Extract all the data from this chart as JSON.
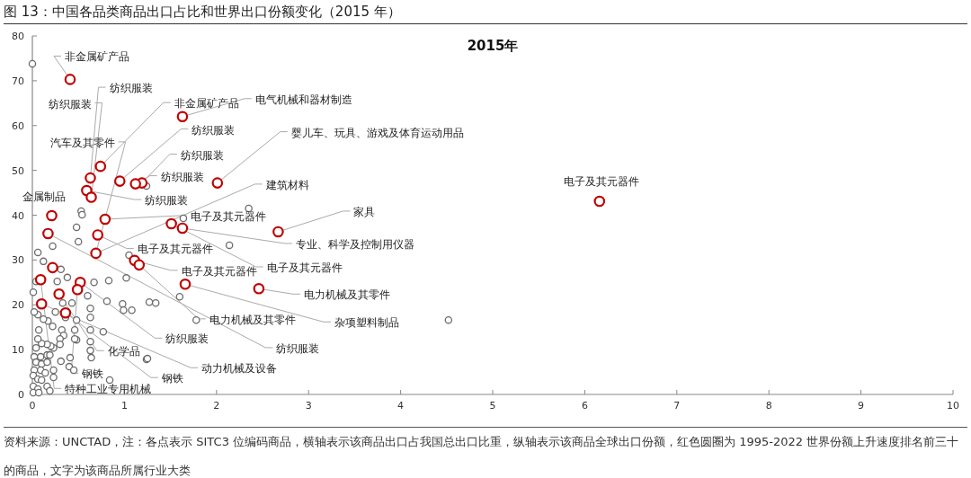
{
  "chart_data": {
    "type": "scatter",
    "title": "图 13：中国各品类商品出口占比和世界出口份额变化（2015 年）",
    "subtitle": "2015年",
    "xlim": [
      0,
      10
    ],
    "ylim": [
      0,
      80
    ],
    "xticks": [
      0,
      1,
      2,
      3,
      4,
      5,
      6,
      7,
      8,
      9,
      10
    ],
    "yticks": [
      0,
      10,
      20,
      30,
      40,
      50,
      60,
      70,
      80
    ],
    "grid": false,
    "marker": "circle",
    "series": [
      {
        "color": "#6b6b6b",
        "x": [
          0,
          1.24,
          0.53,
          0.54,
          0.48,
          0.5,
          0.22,
          0.06,
          0.12,
          1.05,
          0.31,
          0.38,
          0.27,
          0.04,
          0.01,
          0.67,
          0.83,
          1.02,
          0.81,
          0.6,
          0.98,
          0.99,
          1.08,
          1.27,
          1.34,
          0.43,
          0.33,
          0.25,
          0.63,
          0.63,
          0.48,
          0.63,
          0.77,
          0.63,
          0.48,
          0.32,
          0.34,
          0.3,
          0.22,
          0.17,
          0.12,
          0.06,
          0.02,
          0.3,
          0.23,
          0.2,
          0.16,
          0.1,
          0.06,
          0.07,
          0.04,
          0.02,
          0.09,
          0.16,
          0.19,
          0.04,
          0.1,
          0.16,
          0.02,
          0.09,
          0.14,
          0.01,
          0.06,
          0.1,
          0.16,
          0.01,
          0.06,
          0.01,
          0.07,
          0.19,
          0.31,
          0.4,
          0.45,
          0.23,
          0.23,
          0.41,
          0.46,
          0.46,
          0.63,
          0.64,
          1.24,
          0.84,
          0.36,
          2.35,
          1.64,
          2.14,
          1.6,
          1.78,
          4.52,
          1.25
        ],
        "values": [
          73.8,
          46.5,
          40.9,
          40.1,
          37.3,
          34.1,
          33.1,
          31.7,
          29.7,
          31.1,
          27.9,
          26.1,
          25.2,
          25.2,
          22.8,
          25,
          25.4,
          26,
          20.8,
          22,
          20.2,
          18.8,
          18.8,
          20.6,
          20.4,
          20.4,
          20.4,
          18.4,
          19.2,
          17.2,
          16.6,
          14.4,
          14,
          11.8,
          12.2,
          14.4,
          13.2,
          12.4,
          15.2,
          16.4,
          16.8,
          17.8,
          18.4,
          11.2,
          10.4,
          10.8,
          11.2,
          11.4,
          12.4,
          14.4,
          10.4,
          8.4,
          8.4,
          8.8,
          8.8,
          7.2,
          6.8,
          7.2,
          5.4,
          5.4,
          4.8,
          4.2,
          3.4,
          3.2,
          1.8,
          1.8,
          1.2,
          0.4,
          0.4,
          0.8,
          7.4,
          6.2,
          5.4,
          5.4,
          3.8,
          8.2,
          12.4,
          14.4,
          9.8,
          8.2,
          7.8,
          3.2,
          17.2,
          41.5,
          39.3,
          33.3,
          21.8,
          16.6,
          16.6,
          8
        ]
      },
      {
        "color": "#c00000",
        "x": [
          0.41,
          0.74,
          0.63,
          0.59,
          0.64,
          0.95,
          1.19,
          1.12,
          1.63,
          2.01,
          0.21,
          0.79,
          1.51,
          1.63,
          2.67,
          0.17,
          0.71,
          0.69,
          1.11,
          1.16,
          0.22,
          1.66,
          2.46,
          0.09,
          0.52,
          0.49,
          0.29,
          0.1,
          0.36,
          6.16
        ],
        "values": [
          70.3,
          50.9,
          48.3,
          45.5,
          44,
          47.6,
          47.2,
          47,
          62,
          47.2,
          39.9,
          39.1,
          38.1,
          37.1,
          36.3,
          35.9,
          35.6,
          31.5,
          29.9,
          28.9,
          28.3,
          24.6,
          23.6,
          25.6,
          25,
          23.4,
          22.4,
          20.2,
          18.2,
          43.1
        ]
      }
    ],
    "annotations": [
      {
        "text": "非金属矿产品",
        "x": 0.41,
        "y": 70.3
      },
      {
        "text": "纺织服装",
        "x": 0.63,
        "y": 48.3
      },
      {
        "text": "纺织服装",
        "x": 0.64,
        "y": 44
      },
      {
        "text": "非金属矿产品",
        "x": 0.74,
        "y": 50.9
      },
      {
        "text": "电气机械和器材制造",
        "x": 1.63,
        "y": 62
      },
      {
        "text": "纺织服装",
        "x": 0.95,
        "y": 47.6
      },
      {
        "text": "纺织服装",
        "x": 1.19,
        "y": 47.2
      },
      {
        "text": "婴儿车、玩具、游戏及体育运动用品",
        "x": 2.01,
        "y": 47.2
      },
      {
        "text": "纺织服装",
        "x": 1.12,
        "y": 47
      },
      {
        "text": "汽车及其零件",
        "x": 0.69,
        "y": 31.5
      },
      {
        "text": "纺织服装",
        "x": 0.59,
        "y": 45.5
      },
      {
        "text": "建筑材料",
        "x": 0.69,
        "y": 31.5
      },
      {
        "text": "金属制品",
        "x": 0.21,
        "y": 39.9
      },
      {
        "text": "电子及其元器件",
        "x": 0.79,
        "y": 39.1
      },
      {
        "text": "家具",
        "x": 2.67,
        "y": 36.3
      },
      {
        "text": "专业、科学及控制用仪器",
        "x": 1.63,
        "y": 37.1
      },
      {
        "text": "电子及其元器件",
        "x": 1.51,
        "y": 38.1
      },
      {
        "text": "电子及其元器件",
        "x": 0.71,
        "y": 35.6
      },
      {
        "text": "电子及其元器件",
        "x": 1.11,
        "y": 29.9
      },
      {
        "text": "电力机械及其零件",
        "x": 2.46,
        "y": 23.6
      },
      {
        "text": "电力机械及其零件",
        "x": 1.16,
        "y": 28.9
      },
      {
        "text": "杂项塑料制品",
        "x": 1.66,
        "y": 24.6
      },
      {
        "text": "纺织服装",
        "x": 0.52,
        "y": 25
      },
      {
        "text": "纺织服装",
        "x": 0.17,
        "y": 35.9
      },
      {
        "text": "化学品",
        "x": 0.29,
        "y": 22.4
      },
      {
        "text": "动力机械及设备",
        "x": 0.1,
        "y": 20.2
      },
      {
        "text": "钢铁",
        "x": 0.49,
        "y": 23.4
      },
      {
        "text": "钢铁",
        "x": 0.36,
        "y": 18.2
      },
      {
        "text": "特种工业专用机械",
        "x": 0.09,
        "y": 25.6
      },
      {
        "text": "电子及其元器件",
        "x": 6.16,
        "y": 43.1
      },
      "资料来源：UNCTAD，注：各点表示 SITC3 位编码商品，横轴表示该商品出口占我国总出口比重，纵轴表示该商品全球出口份额，红色圆圈为 1995-2022 世界份额上升速度排名前三十的商品，文字为该商品所属行业大类"
    ]
  }
}
